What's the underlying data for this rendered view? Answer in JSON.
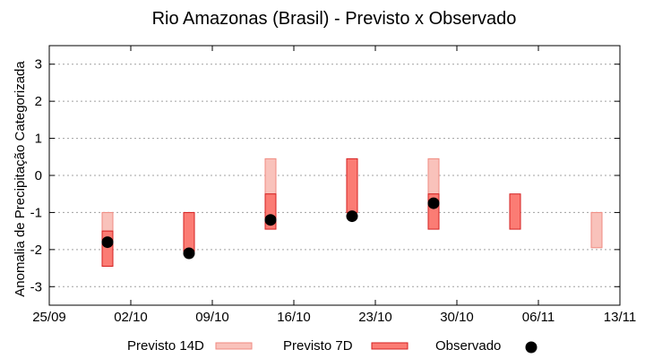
{
  "chart_data": {
    "type": "range-bar",
    "title": "Rio Amazonas (Brasil) - Previsto x Observado",
    "ylabel": "Anomalia de Precipitação Categorizada",
    "xlabel": "",
    "ylim": [
      -3.5,
      3.5
    ],
    "yticks": [
      "3",
      "2",
      "1",
      "0",
      "-1",
      "-2",
      "-3"
    ],
    "x_range": [
      "2022-09-25",
      "2022-11-13"
    ],
    "x_tick_labels": [
      "25/09",
      "02/10",
      "09/10",
      "16/10",
      "23/10",
      "30/10",
      "06/11",
      "13/11"
    ],
    "grid": true,
    "legend_position": "bottom",
    "series": [
      {
        "name": "Previsto 14D",
        "kind": "range",
        "color": "#f9c2bb",
        "stroke": "#f08a80",
        "points": [
          {
            "x": "2022-09-30",
            "low": -1.5,
            "high": -1.0
          },
          {
            "x": "2022-10-14",
            "low": -0.5,
            "high": 0.45
          },
          {
            "x": "2022-10-28",
            "low": -0.5,
            "high": 0.45
          },
          {
            "x": "2022-11-11",
            "low": -1.95,
            "high": -1.0
          }
        ]
      },
      {
        "name": "Previsto 7D",
        "kind": "range",
        "color": "#fb7c74",
        "stroke": "#d42020",
        "points": [
          {
            "x": "2022-09-30",
            "low": -2.45,
            "high": -1.5
          },
          {
            "x": "2022-10-07",
            "low": -2.05,
            "high": -1.0
          },
          {
            "x": "2022-10-14",
            "low": -1.45,
            "high": -0.5
          },
          {
            "x": "2022-10-21",
            "low": -1.0,
            "high": 0.45
          },
          {
            "x": "2022-10-28",
            "low": -1.45,
            "high": -0.5
          },
          {
            "x": "2022-11-04",
            "low": -1.45,
            "high": -0.5
          }
        ]
      },
      {
        "name": "Observado",
        "kind": "point",
        "color": "#000000",
        "points": [
          {
            "x": "2022-09-30",
            "y": -1.8
          },
          {
            "x": "2022-10-07",
            "y": -2.1
          },
          {
            "x": "2022-10-14",
            "y": -1.2
          },
          {
            "x": "2022-10-21",
            "y": -1.1
          },
          {
            "x": "2022-10-28",
            "y": -0.75
          }
        ]
      }
    ]
  }
}
